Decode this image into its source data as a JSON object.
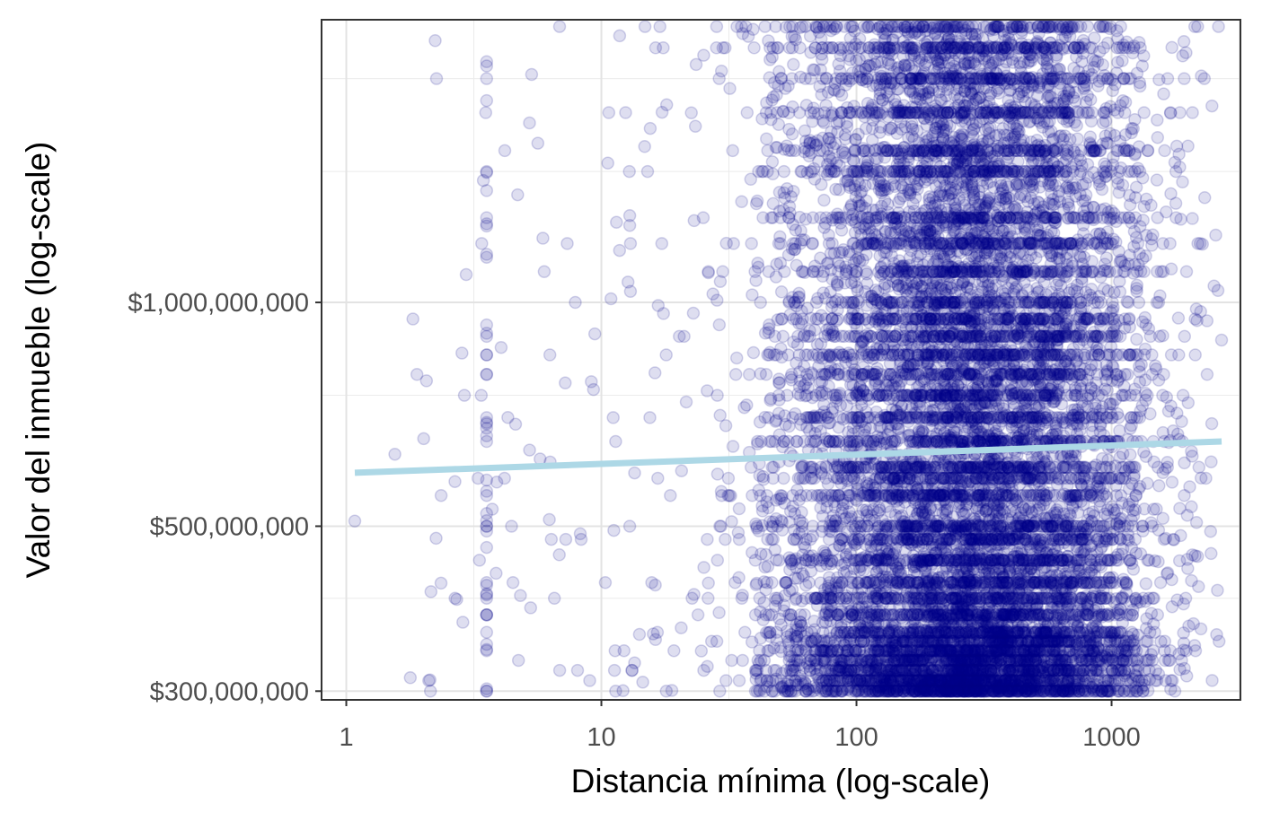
{
  "chart_data": {
    "type": "scatter",
    "title": "",
    "xlabel": "Distancia mínima (log-scale)",
    "ylabel": "Valor del inmueble (log-scale)",
    "x_scale": "log10",
    "y_scale": "log10",
    "xlim": [
      0.8,
      3200
    ],
    "ylim": [
      292000000,
      2400000000
    ],
    "x_ticks": [
      {
        "value": 1,
        "label": "1"
      },
      {
        "value": 10,
        "label": "10"
      },
      {
        "value": 100,
        "label": "100"
      },
      {
        "value": 1000,
        "label": "1000"
      }
    ],
    "x_minor_ticks": [
      3.162,
      31.62,
      316.2,
      3162
    ],
    "y_ticks": [
      {
        "value": 300000000,
        "label": "$300,000,000"
      },
      {
        "value": 500000000,
        "label": "$500,000,000"
      },
      {
        "value": 1000000000,
        "label": "$1,000,000,000"
      }
    ],
    "y_minor_ticks": [
      400000000,
      750000000,
      1500000000,
      2000000000
    ],
    "grid": true,
    "point_color": "#00008B",
    "point_opacity": 0.13,
    "trend_color": "#ADD8E6",
    "trend_line": {
      "x": [
        1.08,
        2700
      ],
      "y": [
        590000000,
        650000000
      ]
    },
    "points_summary": {
      "approx_count": 12000,
      "x_range": [
        1.08,
        2700
      ],
      "y_range": [
        300000000,
        2350000000
      ],
      "dense_x_range": [
        60,
        1100
      ]
    },
    "sample_points": [
      {
        "x": 1.08,
        "y": 508000000
      },
      {
        "x": 1.55,
        "y": 625000000
      },
      {
        "x": 2.95,
        "y": 1090000000
      },
      {
        "x": 3.55,
        "y": 2080000000
      },
      {
        "x": 3.55,
        "y": 1150000000
      },
      {
        "x": 3.55,
        "y": 700000000
      },
      {
        "x": 3.55,
        "y": 300000000
      },
      {
        "x": 5.9,
        "y": 1220000000
      },
      {
        "x": 6.3,
        "y": 610000000
      },
      {
        "x": 10.6,
        "y": 1540000000
      },
      {
        "x": 13,
        "y": 1200000000
      },
      {
        "x": 2200,
        "y": 600000000
      },
      {
        "x": 2600,
        "y": 410000000
      },
      {
        "x": 2700,
        "y": 890000000
      },
      {
        "x": 1320,
        "y": 2080000000
      }
    ]
  }
}
